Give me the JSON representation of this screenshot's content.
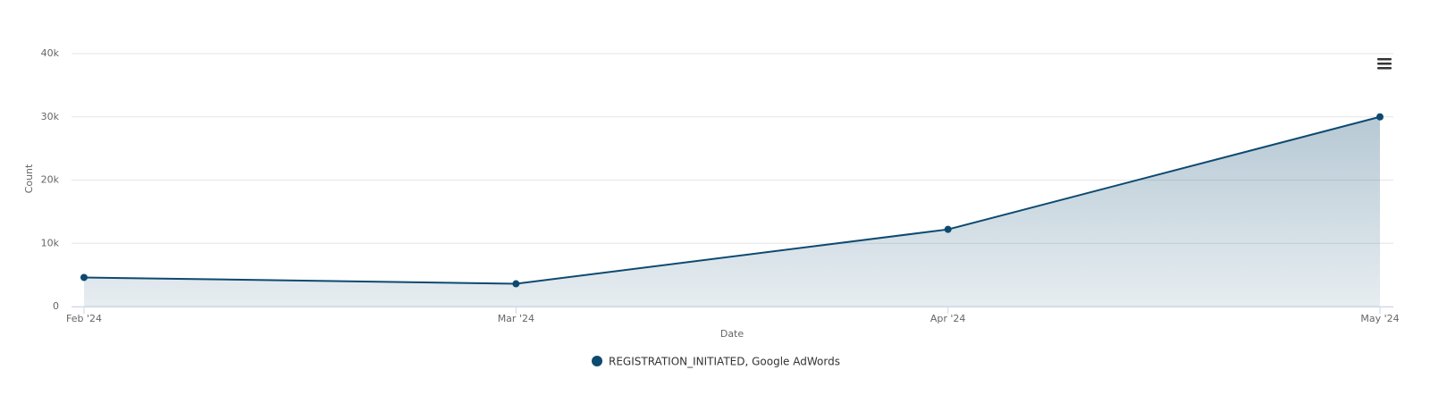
{
  "chart_data": {
    "type": "area",
    "x_label": "Date",
    "y_label": "Count",
    "categories": [
      "Feb '24",
      "Mar '24",
      "Apr '24",
      "May '24"
    ],
    "series": [
      {
        "name": "REGISTRATION_INITIATED, Google AdWords",
        "color": "#0d4a70",
        "values": [
          4600,
          3600,
          12200,
          30000
        ]
      }
    ],
    "ylim": [
      0,
      40000
    ],
    "yticks": [
      0,
      {
        "value": 10000,
        "label": "10k"
      },
      {
        "value": 20000,
        "label": "20k"
      },
      {
        "value": 30000,
        "label": "30k"
      },
      {
        "value": 40000,
        "label": "40k"
      }
    ],
    "grid": true
  }
}
